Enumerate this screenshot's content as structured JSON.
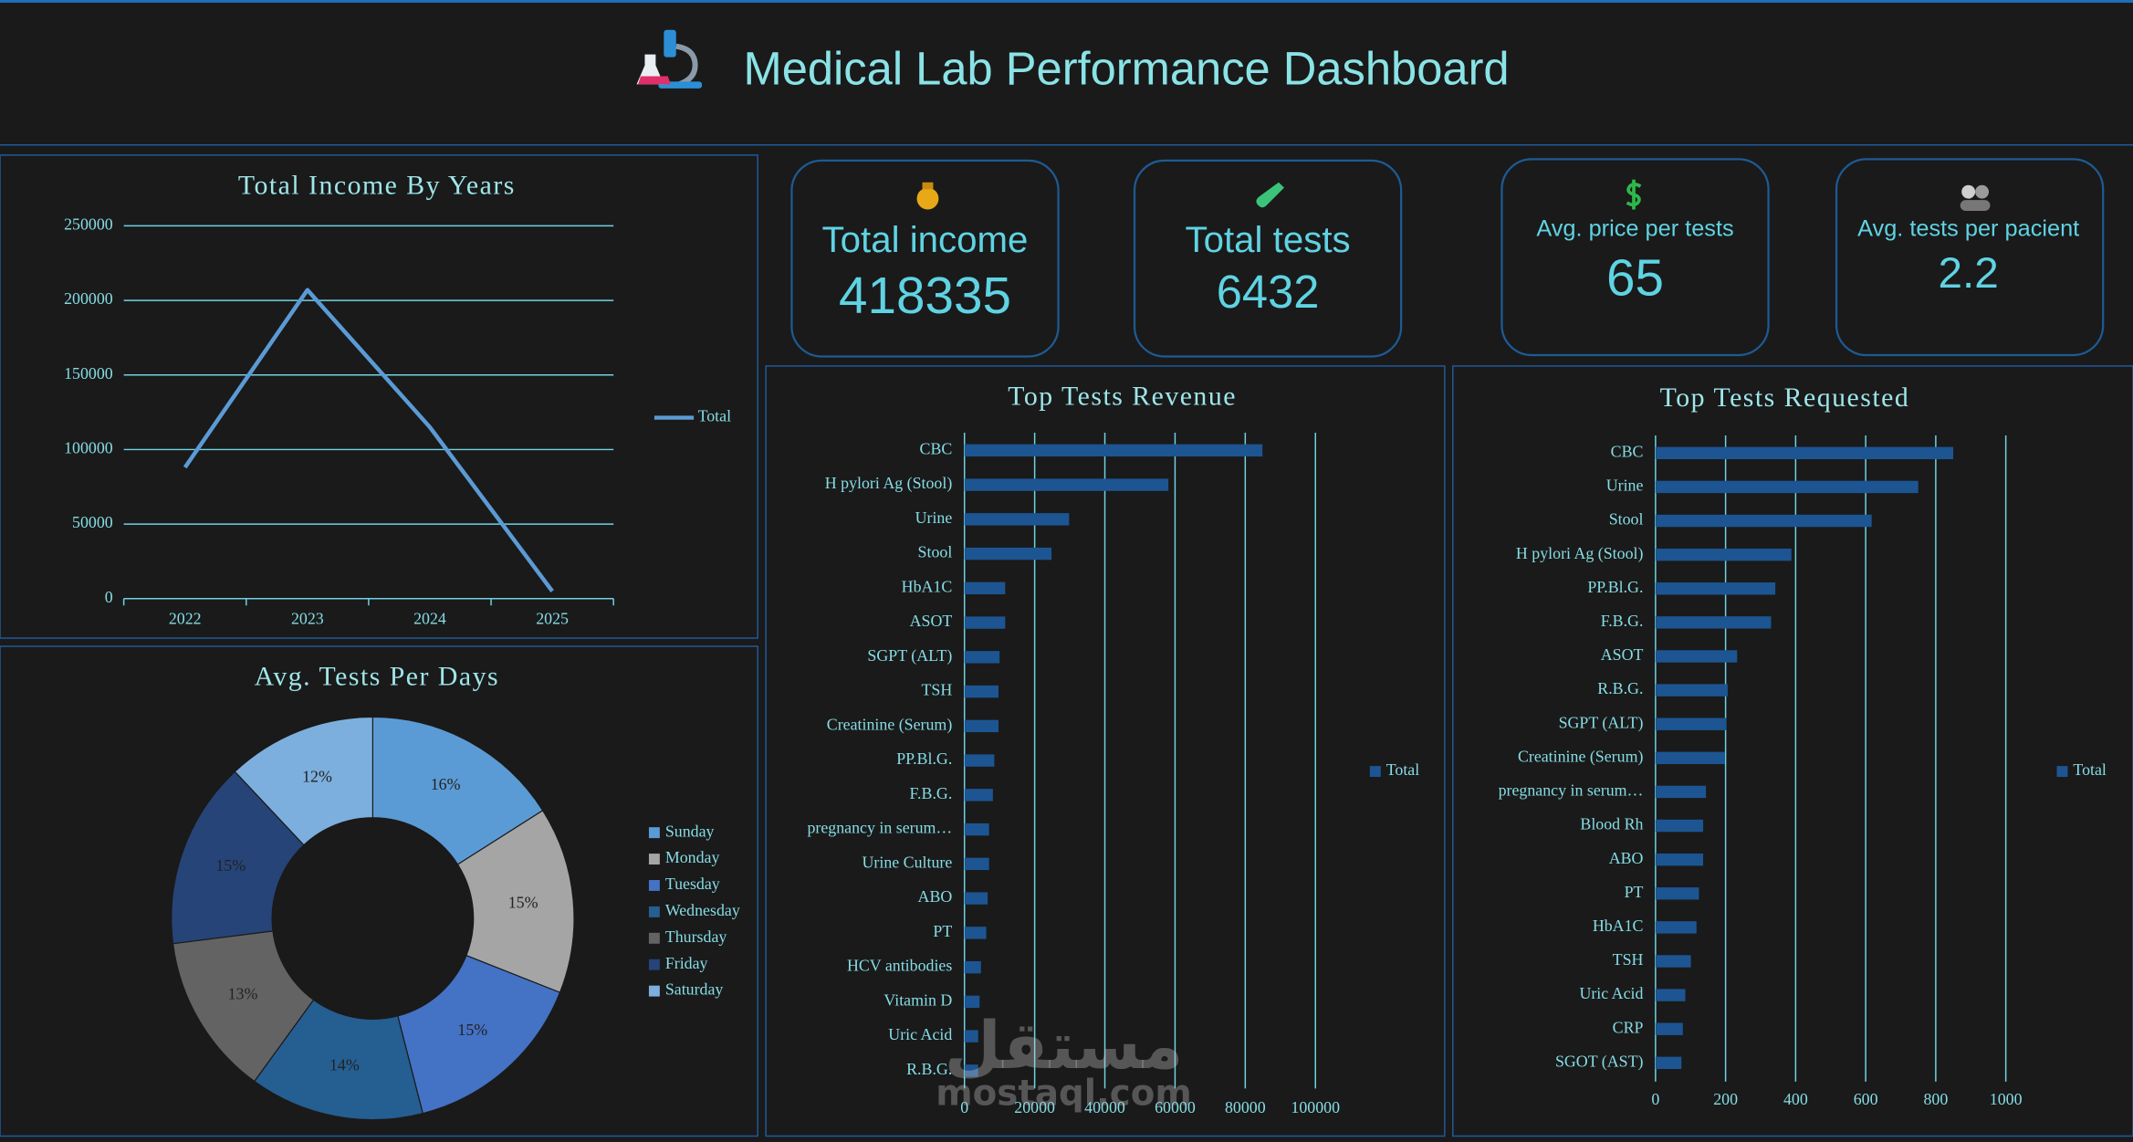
{
  "header": {
    "title": "Medical Lab Performance Dashboard"
  },
  "kpis": [
    {
      "label": "Total income",
      "value": 418335
    },
    {
      "label": "Total tests",
      "value": 6432
    },
    {
      "label": "Avg. price per tests",
      "value": 65
    },
    {
      "label": "Avg. tests per pacient",
      "value": 2.2
    }
  ],
  "chart_data": [
    {
      "type": "line",
      "title": "Total Income By Years",
      "categories": [
        "2022",
        "2023",
        "2024",
        "2025"
      ],
      "series": [
        {
          "name": "Total",
          "color": "#5b9bd5",
          "values": [
            88000,
            207000,
            115000,
            5000
          ]
        }
      ],
      "ylim": [
        0,
        250000
      ],
      "yticks": [
        0,
        50000,
        100000,
        150000,
        200000,
        250000
      ],
      "grid": true,
      "legend": "right"
    },
    {
      "type": "pie",
      "title": "Avg. Tests Per Days",
      "categories": [
        "Sunday",
        "Monday",
        "Tuesday",
        "Wednesday",
        "Thursday",
        "Friday",
        "Saturday"
      ],
      "values": [
        16,
        15,
        15,
        14,
        13,
        15,
        12
      ],
      "value_labels": [
        "16%",
        "15%",
        "15%",
        "14%",
        "13%",
        "15%",
        "12%"
      ],
      "colors": [
        "#5b9bd5",
        "#a5a5a5",
        "#4472c4",
        "#255e91",
        "#636363",
        "#264478",
        "#7cafdd"
      ],
      "donut": true,
      "legend": "right"
    },
    {
      "type": "bar",
      "orientation": "horizontal",
      "title": "Top Tests Revenue",
      "categories": [
        "CBC",
        "H pylori Ag (Stool)",
        "Urine",
        "Stool",
        "HbA1C",
        "ASOT",
        "SGPT (ALT)",
        "TSH",
        "Creatinine (Serum)",
        "PP.Bl.G.",
        "F.B.G.",
        "pregnancy in serum…",
        "Urine Culture",
        "ABO",
        "PT",
        "HCV antibodies",
        "Vitamin D",
        "Uric Acid",
        "R.B.G."
      ],
      "series": [
        {
          "name": "Total",
          "color": "#1d5592",
          "values": [
            84900,
            58100,
            29800,
            24800,
            11600,
            11600,
            10000,
            9700,
            9700,
            8500,
            8100,
            7000,
            7000,
            6600,
            6200,
            4700,
            4300,
            3900,
            3900
          ]
        }
      ],
      "xlim": [
        0,
        100000
      ],
      "xticks": [
        0,
        20000,
        40000,
        60000,
        80000,
        100000
      ],
      "grid": true,
      "legend": "right"
    },
    {
      "type": "bar",
      "orientation": "horizontal",
      "title": "Top Tests Requested",
      "categories": [
        "CBC",
        "Urine",
        "Stool",
        "H pylori Ag (Stool)",
        "PP.Bl.G.",
        "F.B.G.",
        "ASOT",
        "R.B.G.",
        "SGPT (ALT)",
        "Creatinine (Serum)",
        "pregnancy in serum…",
        "Blood Rh",
        "ABO",
        "PT",
        "HbA1C",
        "TSH",
        "Uric Acid",
        "CRP",
        "SGOT (AST)"
      ],
      "series": [
        {
          "name": "Total",
          "color": "#1d5592",
          "values": [
            850,
            750,
            617,
            388,
            342,
            330,
            233,
            206,
            202,
            198,
            144,
            136,
            136,
            124,
            117,
            101,
            85,
            78,
            74
          ]
        }
      ],
      "xlim": [
        0,
        1000
      ],
      "xticks": [
        0,
        200,
        400,
        600,
        800,
        1000
      ],
      "grid": true,
      "legend": "right"
    }
  ],
  "watermark": {
    "arabic": "مستقل",
    "latin": "mostaql.com"
  }
}
